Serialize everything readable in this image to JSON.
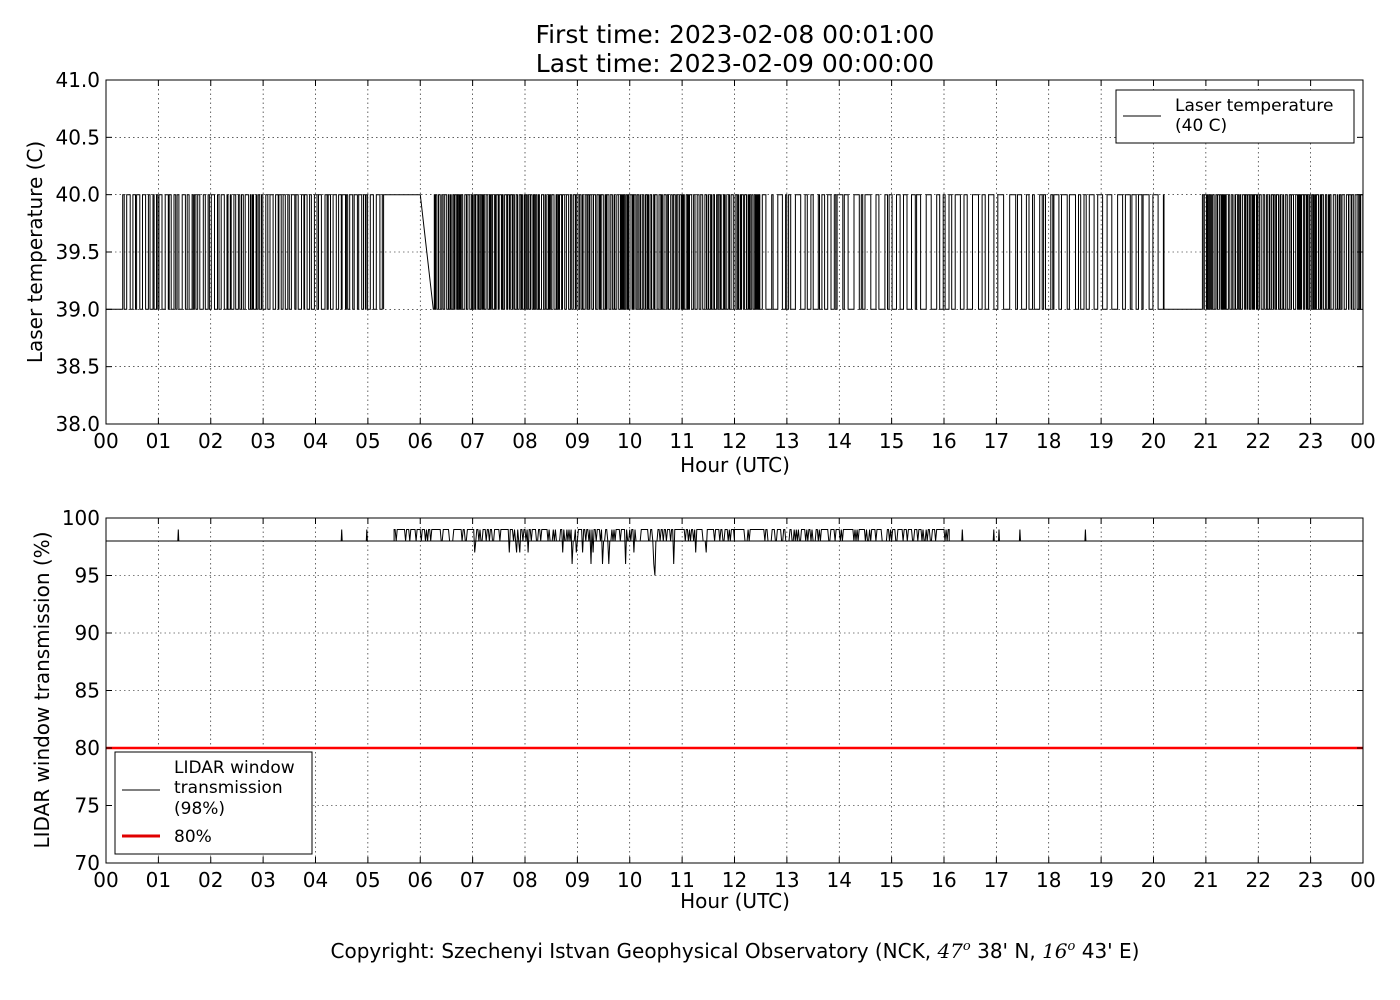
{
  "header": {
    "first_time": "First time: 2023-02-08 00:01:00",
    "last_time": "Last time: 2023-02-09 00:00:00"
  },
  "footer": {
    "prefix": "Copyright: Szechenyi Istvan Geophysical Observatory (NCK,",
    "lat_deg": "47",
    "lat_min": "38' N,",
    "lon_deg": "16",
    "lon_min": "43' E)",
    "deg_sup": "o"
  },
  "chart_data": [
    {
      "type": "line",
      "xlabel": "Hour (UTC)",
      "ylabel": "Laser temperature (C)",
      "xlim": [
        0,
        24
      ],
      "ylim": [
        38.0,
        41.0
      ],
      "x_ticks": [
        "00",
        "01",
        "02",
        "03",
        "04",
        "05",
        "06",
        "07",
        "08",
        "09",
        "10",
        "11",
        "12",
        "13",
        "14",
        "15",
        "16",
        "17",
        "18",
        "19",
        "20",
        "21",
        "22",
        "23",
        "00"
      ],
      "y_ticks": [
        "38.0",
        "38.5",
        "39.0",
        "39.5",
        "40.0",
        "40.5",
        "41.0"
      ],
      "grid": true,
      "legend_position": "top-right",
      "legend": [
        "Laser temperature",
        "(40 C)"
      ],
      "series": [
        {
          "name": "Laser temperature (40 C)",
          "color": "#000000",
          "values_range": [
            39.0,
            40.0
          ],
          "segments": [
            {
              "x": [
                0.0,
                0.27
              ],
              "level": 39.0
            },
            {
              "x": [
                0.27,
                5.3
              ],
              "pattern": "toggling",
              "density": "variable"
            },
            {
              "x": [
                5.3,
                5.6
              ],
              "level": 40.0
            },
            {
              "x": [
                5.7,
                6.0
              ],
              "level": 40.0
            },
            {
              "x": [
                6.25,
                12.5
              ],
              "pattern": "toggling",
              "density": "dense"
            },
            {
              "x": [
                12.5,
                20.2
              ],
              "pattern": "toggling",
              "density": "sparse"
            },
            {
              "x": [
                20.4,
                20.9
              ],
              "level": 39.0
            },
            {
              "x": [
                20.9,
                24.0
              ],
              "pattern": "toggling",
              "density": "dense"
            }
          ]
        }
      ]
    },
    {
      "type": "line",
      "xlabel": "Hour (UTC)",
      "ylabel": "LIDAR window transmission (%)",
      "xlim": [
        0,
        24
      ],
      "ylim": [
        70,
        100
      ],
      "x_ticks": [
        "00",
        "01",
        "02",
        "03",
        "04",
        "05",
        "06",
        "07",
        "08",
        "09",
        "10",
        "11",
        "12",
        "13",
        "14",
        "15",
        "16",
        "17",
        "18",
        "19",
        "20",
        "21",
        "22",
        "23",
        "00"
      ],
      "y_ticks": [
        "70",
        "75",
        "80",
        "85",
        "90",
        "95",
        "100"
      ],
      "grid": true,
      "legend_position": "bottom-left",
      "legend": [
        "LIDAR window",
        "transmission",
        "(98%)",
        "80%"
      ],
      "series": [
        {
          "name": "LIDAR window transmission (98%)",
          "color": "#000000",
          "baseline": 98,
          "segments": [
            {
              "x": [
                0.0,
                5.5
              ],
              "level": 98,
              "spikes": [
                1.38,
                4.5,
                4.98
              ]
            },
            {
              "x": [
                5.5,
                7.0
              ],
              "range": [
                98,
                99
              ]
            },
            {
              "x": [
                7.0,
                8.7
              ],
              "range": [
                97,
                100
              ]
            },
            {
              "x": [
                8.7,
                11.0
              ],
              "range": [
                95,
                99
              ]
            },
            {
              "x": [
                11.0,
                12.0
              ],
              "range": [
                97,
                99
              ]
            },
            {
              "x": [
                12.0,
                16.1
              ],
              "range": [
                98,
                99
              ]
            },
            {
              "x": [
                16.1,
                24.0
              ],
              "level": 98,
              "spikes": [
                16.35,
                16.95,
                17.05,
                17.45,
                18.7
              ]
            }
          ]
        },
        {
          "name": "80%",
          "color": "#ff0000",
          "constant": 80
        }
      ]
    }
  ]
}
